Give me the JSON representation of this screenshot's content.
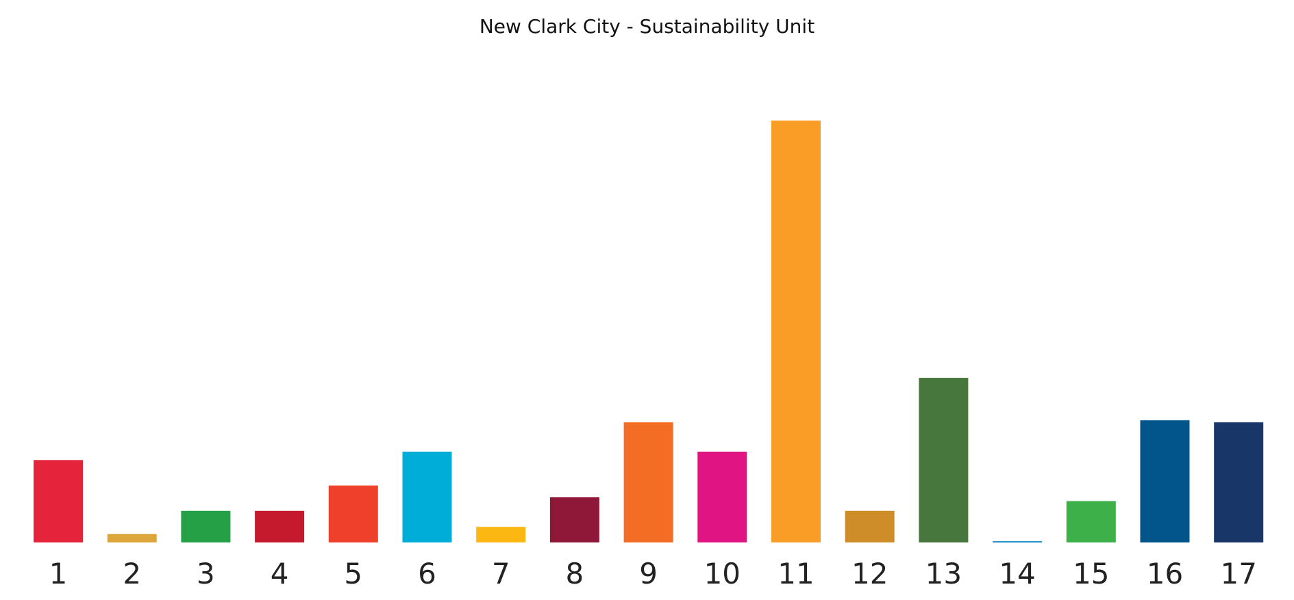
{
  "chart_data": {
    "type": "bar",
    "title": "New Clark City - Sustainability Unit",
    "xlabel": "",
    "ylabel": "",
    "grid": false,
    "legend": "none",
    "ylim": [
      0,
      100
    ],
    "categories": [
      "1",
      "2",
      "3",
      "4",
      "5",
      "6",
      "7",
      "8",
      "9",
      "10",
      "11",
      "12",
      "13",
      "14",
      "15",
      "16",
      "17"
    ],
    "values": [
      19.5,
      2,
      7.5,
      7.5,
      13.5,
      21.5,
      3.7,
      10.7,
      28.5,
      21.5,
      100,
      7.5,
      39,
      0.3,
      9.8,
      29,
      28.5
    ],
    "colors": [
      "#E5243B",
      "#DDA63A",
      "#26A047",
      "#C5192D",
      "#EF402B",
      "#00ADD8",
      "#FDB713",
      "#8F1838",
      "#F36D25",
      "#E11484",
      "#F99D26",
      "#CF8D2A",
      "#48773E",
      "#007DBC",
      "#3EB049",
      "#02558B",
      "#183668"
    ]
  }
}
